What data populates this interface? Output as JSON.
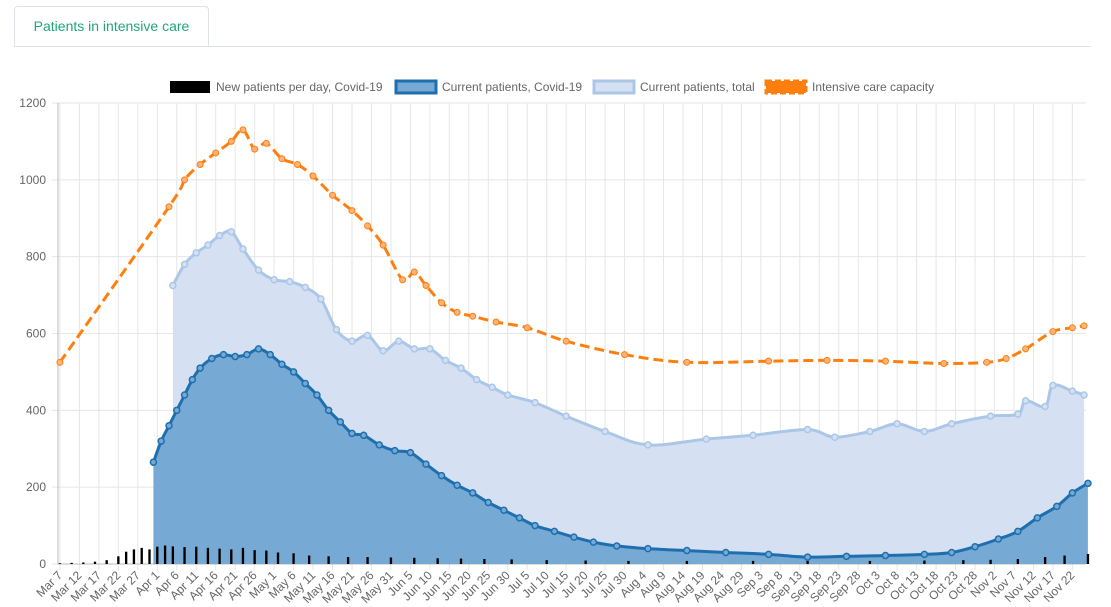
{
  "tabs": [
    {
      "label": "Patients in intensive care",
      "active": true
    }
  ],
  "colors": {
    "tab_text": "#1fa67a",
    "total_fill": "#d5e1f3",
    "total_line": "#abc7e8",
    "covid_fill": "#76a9d3",
    "covid_line": "#1f6faf",
    "new_bar": "#000000",
    "capacity": "#ff7f0e",
    "grid": "#e6e6e6"
  },
  "chart_data": {
    "type": "line",
    "title": "",
    "xlabel": "",
    "ylabel": "",
    "ylim": [
      0,
      1200
    ],
    "yticks": [
      0,
      200,
      400,
      600,
      800,
      1000,
      1200
    ],
    "grid": true,
    "legend_position": "top",
    "x_start": "2020-03-07",
    "x_end": "2020-11-26",
    "x_tick_labels": [
      "Mar 7",
      "Mar 12",
      "Mar 17",
      "Mar 22",
      "Mar 27",
      "Apr 1",
      "Apr 6",
      "Apr 11",
      "Apr 16",
      "Apr 21",
      "Apr 26",
      "May 1",
      "May 6",
      "May 11",
      "May 16",
      "May 21",
      "May 26",
      "May 31",
      "Jun 5",
      "Jun 10",
      "Jun 15",
      "Jun 20",
      "Jun 25",
      "Jun 30",
      "Jul 5",
      "Jul 10",
      "Jul 15",
      "Jul 20",
      "Jul 25",
      "Jul 30",
      "Aug 4",
      "Aug 9",
      "Aug 14",
      "Aug 19",
      "Aug 24",
      "Aug 29",
      "Sep 3",
      "Sep 8",
      "Sep 13",
      "Sep 18",
      "Sep 23",
      "Sep 28",
      "Oct 3",
      "Oct 8",
      "Oct 13",
      "Oct 18",
      "Oct 23",
      "Oct 28",
      "Nov 2",
      "Nov 7",
      "Nov 12",
      "Nov 17",
      "Nov 22"
    ],
    "series": [
      {
        "name": "New patients per day, Covid-19",
        "kind": "bar",
        "color": "#000000",
        "x": [
          "2020-03-07",
          "2020-03-10",
          "2020-03-13",
          "2020-03-16",
          "2020-03-19",
          "2020-03-22",
          "2020-03-24",
          "2020-03-26",
          "2020-03-28",
          "2020-03-30",
          "2020-04-01",
          "2020-04-03",
          "2020-04-05",
          "2020-04-08",
          "2020-04-11",
          "2020-04-14",
          "2020-04-17",
          "2020-04-20",
          "2020-04-23",
          "2020-04-26",
          "2020-04-29",
          "2020-05-02",
          "2020-05-06",
          "2020-05-10",
          "2020-05-15",
          "2020-05-20",
          "2020-05-25",
          "2020-05-31",
          "2020-06-06",
          "2020-06-12",
          "2020-06-18",
          "2020-06-24",
          "2020-07-01",
          "2020-07-10",
          "2020-07-20",
          "2020-07-31",
          "2020-08-15",
          "2020-09-01",
          "2020-09-15",
          "2020-10-01",
          "2020-10-15",
          "2020-10-25",
          "2020-11-01",
          "2020-11-08",
          "2020-11-15",
          "2020-11-20",
          "2020-11-26"
        ],
        "values": [
          2,
          3,
          4,
          6,
          10,
          20,
          32,
          38,
          42,
          38,
          45,
          48,
          46,
          44,
          45,
          42,
          40,
          38,
          42,
          36,
          35,
          30,
          28,
          22,
          20,
          18,
          18,
          17,
          16,
          15,
          14,
          13,
          12,
          10,
          9,
          8,
          8,
          8,
          8,
          8,
          9,
          10,
          11,
          13,
          18,
          22,
          26
        ]
      },
      {
        "name": "Current patients, Covid-19",
        "kind": "area",
        "color": "#1f6faf",
        "x": [
          "2020-03-31",
          "2020-04-02",
          "2020-04-04",
          "2020-04-06",
          "2020-04-08",
          "2020-04-10",
          "2020-04-12",
          "2020-04-15",
          "2020-04-18",
          "2020-04-21",
          "2020-04-24",
          "2020-04-27",
          "2020-04-30",
          "2020-05-03",
          "2020-05-06",
          "2020-05-09",
          "2020-05-12",
          "2020-05-15",
          "2020-05-18",
          "2020-05-21",
          "2020-05-24",
          "2020-05-28",
          "2020-06-01",
          "2020-06-05",
          "2020-06-09",
          "2020-06-13",
          "2020-06-17",
          "2020-06-21",
          "2020-06-25",
          "2020-06-29",
          "2020-07-03",
          "2020-07-07",
          "2020-07-12",
          "2020-07-17",
          "2020-07-22",
          "2020-07-28",
          "2020-08-05",
          "2020-08-15",
          "2020-08-25",
          "2020-09-05",
          "2020-09-15",
          "2020-09-25",
          "2020-10-05",
          "2020-10-15",
          "2020-10-22",
          "2020-10-28",
          "2020-11-03",
          "2020-11-08",
          "2020-11-13",
          "2020-11-18",
          "2020-11-22",
          "2020-11-26"
        ],
        "values": [
          265,
          320,
          360,
          400,
          440,
          480,
          510,
          535,
          545,
          540,
          545,
          560,
          545,
          520,
          500,
          470,
          440,
          400,
          370,
          340,
          335,
          310,
          295,
          290,
          260,
          230,
          205,
          185,
          160,
          140,
          120,
          100,
          85,
          70,
          57,
          47,
          40,
          35,
          30,
          25,
          18,
          20,
          22,
          25,
          30,
          45,
          65,
          85,
          120,
          150,
          185,
          210
        ]
      },
      {
        "name": "Current patients, total",
        "kind": "area",
        "color": "#abc7e8",
        "x": [
          "2020-04-05",
          "2020-04-08",
          "2020-04-11",
          "2020-04-14",
          "2020-04-17",
          "2020-04-20",
          "2020-04-23",
          "2020-04-27",
          "2020-05-01",
          "2020-05-05",
          "2020-05-09",
          "2020-05-13",
          "2020-05-17",
          "2020-05-21",
          "2020-05-25",
          "2020-05-29",
          "2020-06-02",
          "2020-06-06",
          "2020-06-10",
          "2020-06-14",
          "2020-06-18",
          "2020-06-22",
          "2020-06-26",
          "2020-06-30",
          "2020-07-07",
          "2020-07-15",
          "2020-07-25",
          "2020-08-05",
          "2020-08-20",
          "2020-09-01",
          "2020-09-15",
          "2020-09-22",
          "2020-10-01",
          "2020-10-08",
          "2020-10-15",
          "2020-10-22",
          "2020-11-01",
          "2020-11-08",
          "2020-11-10",
          "2020-11-15",
          "2020-11-17",
          "2020-11-22",
          "2020-11-25"
        ],
        "values": [
          725,
          780,
          810,
          830,
          855,
          865,
          820,
          765,
          740,
          735,
          720,
          690,
          610,
          580,
          595,
          555,
          580,
          560,
          560,
          530,
          510,
          480,
          460,
          440,
          420,
          385,
          345,
          310,
          325,
          335,
          350,
          330,
          345,
          365,
          345,
          365,
          385,
          390,
          425,
          410,
          465,
          450,
          440
        ]
      },
      {
        "name": "Intensive care capacity",
        "kind": "dashed-line",
        "color": "#ff7f0e",
        "x": [
          "2020-03-07",
          "2020-04-04",
          "2020-04-08",
          "2020-04-12",
          "2020-04-16",
          "2020-04-20",
          "2020-04-23",
          "2020-04-26",
          "2020-04-29",
          "2020-05-03",
          "2020-05-07",
          "2020-05-11",
          "2020-05-16",
          "2020-05-21",
          "2020-05-25",
          "2020-05-29",
          "2020-06-03",
          "2020-06-06",
          "2020-06-09",
          "2020-06-13",
          "2020-06-17",
          "2020-06-21",
          "2020-06-27",
          "2020-07-05",
          "2020-07-15",
          "2020-07-30",
          "2020-08-15",
          "2020-09-05",
          "2020-09-20",
          "2020-10-05",
          "2020-10-20",
          "2020-10-31",
          "2020-11-05",
          "2020-11-10",
          "2020-11-17",
          "2020-11-22",
          "2020-11-25"
        ],
        "values": [
          525,
          930,
          1000,
          1040,
          1070,
          1100,
          1130,
          1080,
          1095,
          1055,
          1040,
          1010,
          960,
          920,
          880,
          830,
          740,
          760,
          725,
          680,
          655,
          645,
          630,
          615,
          580,
          545,
          525,
          528,
          530,
          528,
          522,
          525,
          535,
          560,
          605,
          615,
          620
        ]
      }
    ]
  }
}
